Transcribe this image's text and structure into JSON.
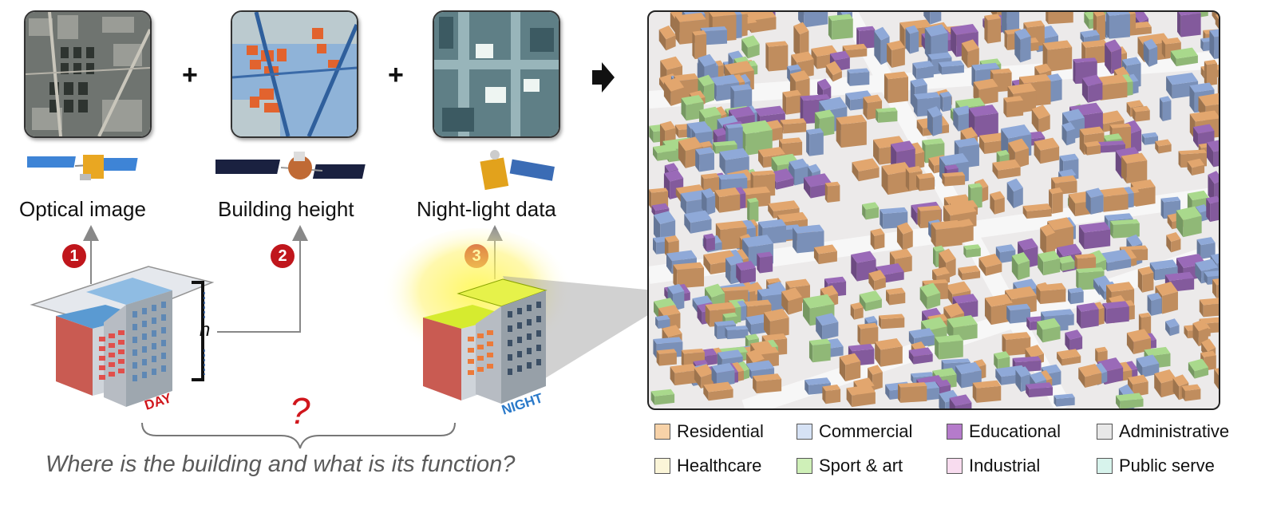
{
  "sources": [
    {
      "label": "Optical image",
      "step": "1"
    },
    {
      "label": "Building height",
      "step": "2"
    },
    {
      "label": "Night-light data",
      "step": "3"
    }
  ],
  "plus": "+",
  "height_symbol": "h",
  "question_mark": "?",
  "day_label": "DAY",
  "night_label": "NIGHT",
  "question": "Where is the building and what is its function?",
  "legend": [
    {
      "label": "Residential",
      "color": "#f7d2a8"
    },
    {
      "label": "Commercial",
      "color": "#d6e2f5"
    },
    {
      "label": "Educational",
      "color": "#b57bcb"
    },
    {
      "label": "Administrative",
      "color": "#e8e8e8"
    },
    {
      "label": "Healthcare",
      "color": "#fbf5d8"
    },
    {
      "label": "Sport & art",
      "color": "#cff0b8"
    },
    {
      "label": "Industrial",
      "color": "#f8dcef"
    },
    {
      "label": "Public serve",
      "color": "#d7f3ec"
    }
  ],
  "colors": {
    "residential": "#e2a66e",
    "commercial": "#8fa9d8",
    "educational": "#9a6ab8",
    "sport": "#a9d98c",
    "marker": "#c0161c",
    "day": "#d0161c",
    "night": "#2a79c9"
  }
}
